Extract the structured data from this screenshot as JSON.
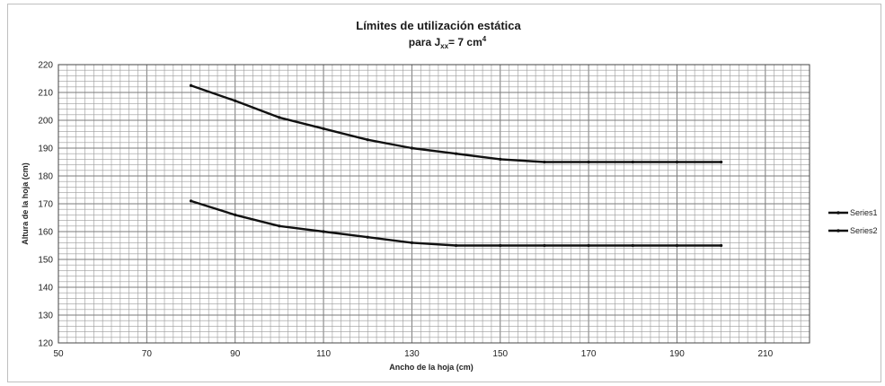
{
  "chart_data": {
    "type": "line",
    "title_line1": "Límites de utilización estática",
    "title_line2_prefix": "para J",
    "title_line2_sub": "xx",
    "title_line2_suffix": "= 7 cm",
    "title_line2_sup": "4",
    "xlabel": "Ancho de la hoja (cm)",
    "ylabel": "Altura de la hoja (cm)",
    "xlim": [
      50,
      220
    ],
    "ylim": [
      120,
      220
    ],
    "x_ticks": [
      50,
      70,
      90,
      110,
      130,
      150,
      170,
      190,
      210
    ],
    "y_ticks": [
      120,
      130,
      140,
      150,
      160,
      170,
      180,
      190,
      200,
      210,
      220
    ],
    "grid": true,
    "legend_position": "right",
    "series": [
      {
        "name": "Series1",
        "color": "#111111",
        "x": [
          80,
          90,
          100,
          110,
          120,
          130,
          140,
          150,
          160,
          170,
          180,
          190,
          200
        ],
        "y": [
          212.5,
          207,
          201,
          197,
          193,
          190,
          188,
          186,
          185,
          185,
          185,
          185,
          185
        ]
      },
      {
        "name": "Series2",
        "color": "#111111",
        "x": [
          80,
          90,
          100,
          110,
          120,
          130,
          140,
          150,
          160,
          170,
          180,
          190,
          200
        ],
        "y": [
          171,
          166,
          162,
          160,
          158,
          156,
          155,
          155,
          155,
          155,
          155,
          155,
          155
        ]
      }
    ]
  }
}
